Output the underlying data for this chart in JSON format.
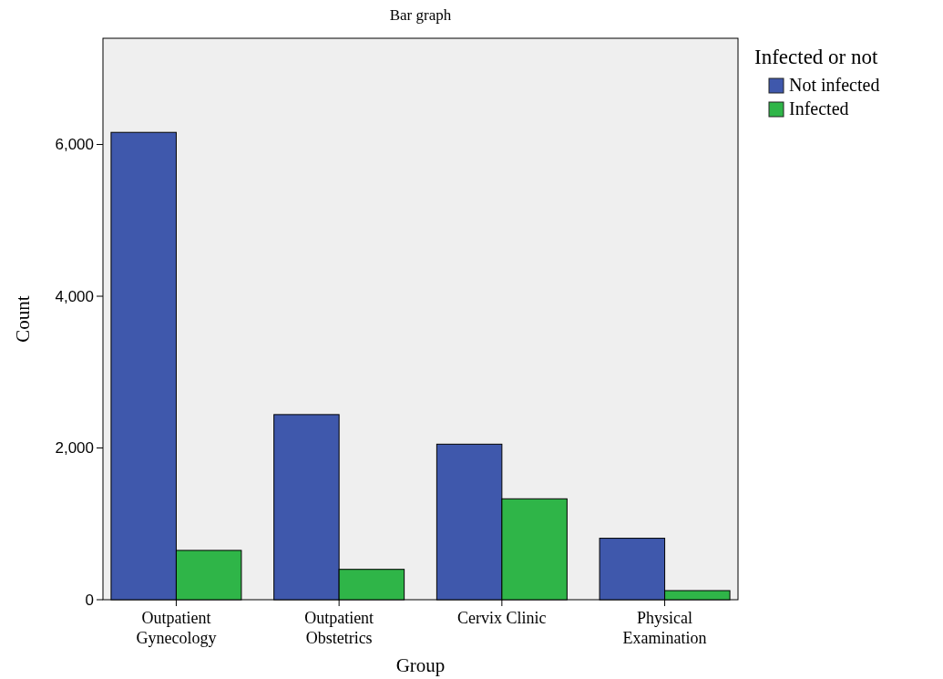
{
  "chart_data": {
    "type": "bar",
    "title": "Bar graph",
    "xlabel": "Group",
    "ylabel": "Count",
    "legend_title": "Infected or not",
    "categories": [
      "Outpatient\nGynecology",
      "Outpatient\nObstetrics",
      "Cervix Clinic",
      "Physical\nExamination"
    ],
    "series": [
      {
        "name": "Not infected",
        "color": "#3f58ac",
        "values": [
          6160,
          2440,
          2050,
          810
        ]
      },
      {
        "name": "Infected",
        "color": "#2fb548",
        "values": [
          650,
          400,
          1330,
          120
        ]
      }
    ],
    "ylim": [
      0,
      7400
    ],
    "yticks": [
      {
        "value": 0,
        "label": "0"
      },
      {
        "value": 2000,
        "label": "2,000"
      },
      {
        "value": 4000,
        "label": "4,000"
      },
      {
        "value": 6000,
        "label": "6,000"
      }
    ],
    "grid": false,
    "legend": "top right"
  }
}
